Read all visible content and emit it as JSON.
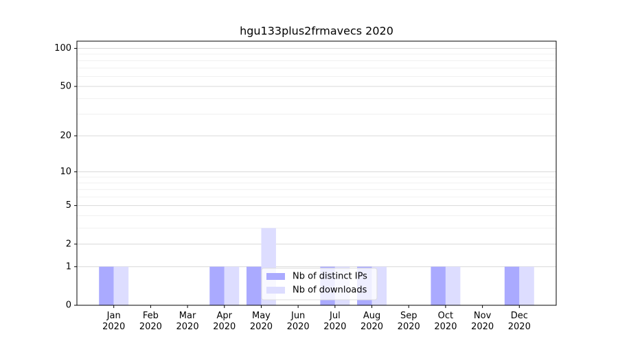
{
  "chart_data": {
    "type": "bar",
    "title": "hgu133plus2frmavecs 2020",
    "categories": [
      "Jan\n2020",
      "Feb\n2020",
      "Mar\n2020",
      "Apr\n2020",
      "May\n2020",
      "Jun\n2020",
      "Jul\n2020",
      "Aug\n2020",
      "Sep\n2020",
      "Oct\n2020",
      "Nov\n2020",
      "Dec\n2020"
    ],
    "series": [
      {
        "name": "Nb of distinct IPs",
        "color": "#aaaaff",
        "values": [
          1,
          0,
          0,
          1,
          1,
          0,
          1,
          1,
          0,
          1,
          0,
          1
        ]
      },
      {
        "name": "Nb of downloads",
        "color": "#ddddff",
        "values": [
          1,
          0,
          0,
          1,
          3,
          0,
          1,
          1,
          0,
          1,
          0,
          1
        ]
      }
    ],
    "yscale": "log1p",
    "ylim": [
      0,
      114
    ],
    "yticks": [
      0,
      1,
      2,
      5,
      10,
      20,
      50,
      100
    ],
    "yminorticks": [
      3,
      4,
      6,
      7,
      8,
      9,
      30,
      40,
      60,
      70,
      80,
      90
    ],
    "grid": true,
    "legend": "lower center"
  }
}
